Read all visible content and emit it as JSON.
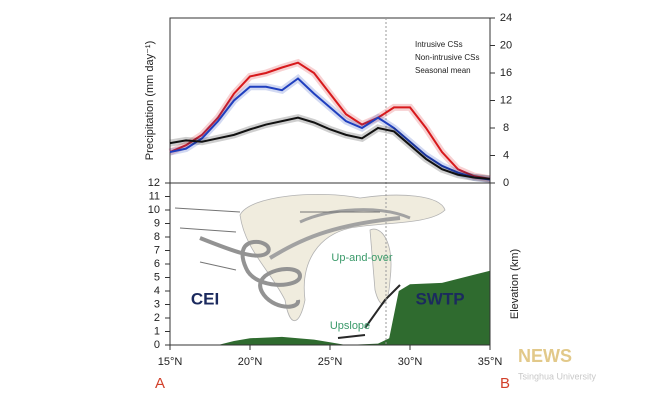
{
  "chart_data": [
    {
      "type": "line",
      "ylabel": "Precipitation (mm day⁻¹)",
      "x": [
        15,
        16,
        17,
        18,
        19,
        20,
        21,
        22,
        23,
        24,
        25,
        26,
        27,
        28,
        29,
        30,
        31,
        32,
        33,
        34,
        35
      ],
      "xlim": [
        15,
        35
      ],
      "ylim": [
        0,
        24
      ],
      "yticks": [
        0,
        4,
        8,
        12,
        16,
        20,
        24
      ],
      "legend": "top-right",
      "reference_x": 28.5,
      "series": [
        {
          "name": "Intrusive CSs",
          "color": "#d7191c",
          "values": [
            4.5,
            5.5,
            7,
            9.5,
            13,
            15.5,
            16,
            16.8,
            17.5,
            16,
            13,
            10,
            8.5,
            9.5,
            11,
            11,
            8,
            4.5,
            2,
            1,
            0.6
          ]
        },
        {
          "name": "Non-intrusive CSs",
          "color": "#1f3fbf",
          "values": [
            4.5,
            5,
            6.5,
            9,
            12,
            14,
            14,
            13.5,
            15.2,
            13,
            11,
            9,
            8,
            9.5,
            8,
            6,
            4,
            2.5,
            1.5,
            0.8,
            0.5
          ]
        },
        {
          "name": "Seasonal mean",
          "color": "#111111",
          "values": [
            5.8,
            6.2,
            6,
            6.5,
            7,
            7.8,
            8.5,
            9,
            9.5,
            8.8,
            7.8,
            7,
            6.5,
            8,
            7.5,
            5.5,
            3.5,
            2,
            1.2,
            0.8,
            0.6
          ]
        }
      ]
    },
    {
      "type": "area",
      "ylabel": "Elevation (km)",
      "x": [
        18,
        19,
        20,
        22,
        24,
        25,
        26,
        28,
        28.7,
        29.3,
        30,
        32,
        34,
        35
      ],
      "values": [
        0,
        0.3,
        0.5,
        0.6,
        0.4,
        0.2,
        0,
        0.1,
        0.5,
        4,
        4.5,
        4.6,
        5.2,
        5.5
      ],
      "color": "#2f6b2f",
      "xlim": [
        15,
        35
      ],
      "xticks": [
        {
          "value": 15,
          "label": "15°N"
        },
        {
          "value": 20,
          "label": "20°N"
        },
        {
          "value": 25,
          "label": "25°N"
        },
        {
          "value": 30,
          "label": "30°N"
        },
        {
          "value": 35,
          "label": "35°N"
        }
      ],
      "ylim": [
        0,
        12
      ],
      "yticks": [
        0,
        1,
        2,
        3,
        4,
        5,
        6,
        7,
        8,
        9,
        10,
        11,
        12
      ],
      "reference_x": 28.5,
      "annotations": [
        {
          "text": "CEI",
          "color": "#1b2a5e"
        },
        {
          "text": "SWTP",
          "color": "#1b2a5e"
        },
        {
          "text": "Up-and-over",
          "color": "#3a9a6a"
        },
        {
          "text": "Upslope",
          "color": "#3a9a6a"
        }
      ]
    }
  ],
  "corner_labels": [
    "A",
    "B"
  ],
  "watermark": {
    "title": "NEWS",
    "subtitle": "Tsinghua University"
  }
}
